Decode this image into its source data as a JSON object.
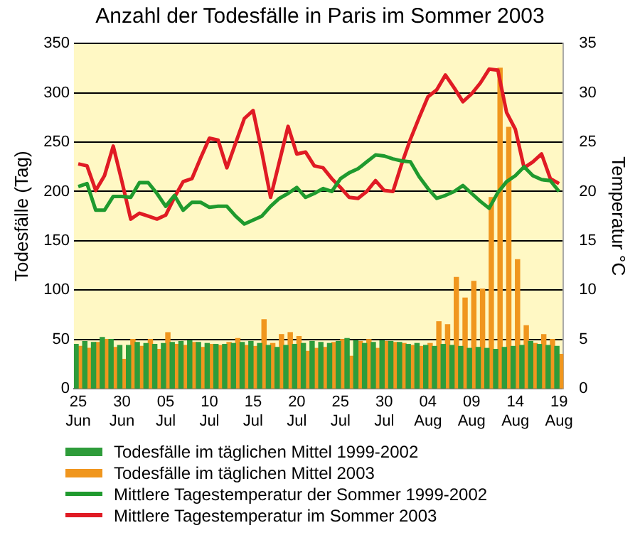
{
  "chart_data": {
    "type": "bar",
    "title": "Anzahl der Todesfälle in Paris im Sommer 2003",
    "ylabel": "Todesfälle (Tag)",
    "y2label": "Temperatur °C",
    "categories": [
      "25 Jun",
      null,
      null,
      null,
      null,
      "30 Jun",
      null,
      null,
      null,
      null,
      "05 Jul",
      null,
      null,
      null,
      null,
      "10 Jul",
      null,
      null,
      null,
      null,
      "15 Jul",
      null,
      null,
      null,
      null,
      "20 Jul",
      null,
      null,
      null,
      null,
      "25 Jul",
      null,
      null,
      null,
      null,
      "30 Jul",
      null,
      null,
      null,
      null,
      "04 Aug",
      null,
      null,
      null,
      null,
      "09 Aug",
      null,
      null,
      null,
      null,
      "14 Aug",
      null,
      null,
      null,
      null,
      "19 Aug"
    ],
    "ylim": [
      0,
      350
    ],
    "yticks": [
      0,
      50,
      100,
      150,
      200,
      250,
      300,
      350
    ],
    "y2lim": [
      0,
      35
    ],
    "y2ticks": [
      0,
      5,
      10,
      15,
      20,
      25,
      30,
      35
    ],
    "grid": "y",
    "legend": "bottom",
    "series": [
      {
        "name": "Todesfälle im täglichen Mittel 1999-2002",
        "color": "#2e9c3a",
        "values": [
          45,
          48,
          47,
          52,
          50,
          44,
          44,
          47,
          46,
          45,
          46,
          47,
          48,
          49,
          47,
          46,
          45,
          45,
          46,
          47,
          48,
          46,
          44,
          42,
          44,
          45,
          46,
          48,
          47,
          46,
          48,
          51,
          49,
          46,
          47,
          49,
          48,
          47,
          45,
          46,
          44,
          43,
          45,
          44,
          43,
          41,
          42,
          41,
          40,
          42,
          43,
          44,
          48,
          45,
          44,
          43
        ]
      },
      {
        "name": "Todesfälle im täglichen Mittel 2003",
        "color": "#f0961e",
        "values": [
          43,
          41,
          47,
          50,
          42,
          30,
          50,
          43,
          50,
          40,
          57,
          45,
          44,
          47,
          42,
          45,
          44,
          47,
          51,
          44,
          43,
          70,
          46,
          55,
          57,
          53,
          38,
          41,
          42,
          47,
          50,
          33,
          48,
          50,
          41,
          48,
          47,
          46,
          44,
          43,
          46,
          68,
          65,
          113,
          92,
          109,
          101,
          194,
          325,
          265,
          131,
          64,
          46,
          55,
          50,
          35
        ]
      },
      {
        "name": "Mittlere Tagestemperatur der Sommer 1999-2002",
        "type": "line",
        "axis": "y2",
        "color": "#1f9a2e",
        "values": [
          20.5,
          20.8,
          18.1,
          18.1,
          19.5,
          19.5,
          19.4,
          20.9,
          20.9,
          19.8,
          18.5,
          19.6,
          18.1,
          18.9,
          18.9,
          18.4,
          18.5,
          18.5,
          17.5,
          16.7,
          17.1,
          17.5,
          18.5,
          19.3,
          19.8,
          20.4,
          19.4,
          19.8,
          20.3,
          20,
          21.3,
          21.9,
          22.3,
          23,
          23.7,
          23.6,
          23.3,
          23.1,
          23,
          21.5,
          20.3,
          19.3,
          19.6,
          20,
          20.6,
          19.8,
          19,
          18.3,
          19.9,
          21,
          21.6,
          22.5,
          21.6,
          21.2,
          21.1,
          20
        ]
      },
      {
        "name": "Mittlere Tagestemperatur im Sommer 2003",
        "type": "line",
        "axis": "y2",
        "color": "#e01b24",
        "values": [
          22.8,
          22.6,
          20.1,
          21.6,
          24.6,
          21,
          17.2,
          17.8,
          17.5,
          17.2,
          17.6,
          19.4,
          21,
          21.3,
          23.4,
          25.4,
          25.2,
          22.4,
          24.9,
          27.4,
          28.2,
          24,
          19.4,
          23,
          26.6,
          23.8,
          24,
          22.6,
          22.4,
          21.3,
          20.4,
          19.4,
          19.3,
          20,
          21.1,
          20.1,
          20,
          22.8,
          25.3,
          27.5,
          29.6,
          30.3,
          31.8,
          30.5,
          29.1,
          29.9,
          31,
          32.4,
          32.3,
          28,
          26.3,
          22.4,
          23,
          23.8,
          21.3,
          20.8
        ]
      }
    ]
  }
}
